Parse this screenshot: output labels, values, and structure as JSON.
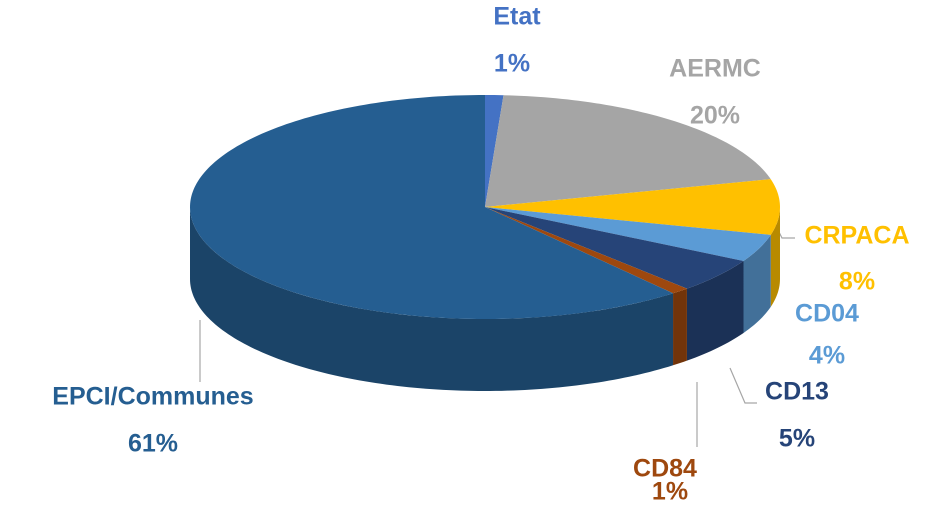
{
  "chart_data": {
    "type": "pie",
    "categories": [
      "Etat",
      "AERMC",
      "CRPACA",
      "CD04",
      "CD13",
      "CD84",
      "EPCI/Communes"
    ],
    "values": [
      1,
      20,
      8,
      4,
      5,
      1,
      61
    ],
    "value_labels": [
      "1%",
      "20%",
      "8%",
      "4%",
      "5%",
      "1%",
      "61%"
    ],
    "colors": [
      "#4472c4",
      "#a5a5a5",
      "#ffc000",
      "#5b9bd5",
      "#264478",
      "#9e480e",
      "#255e91"
    ]
  }
}
